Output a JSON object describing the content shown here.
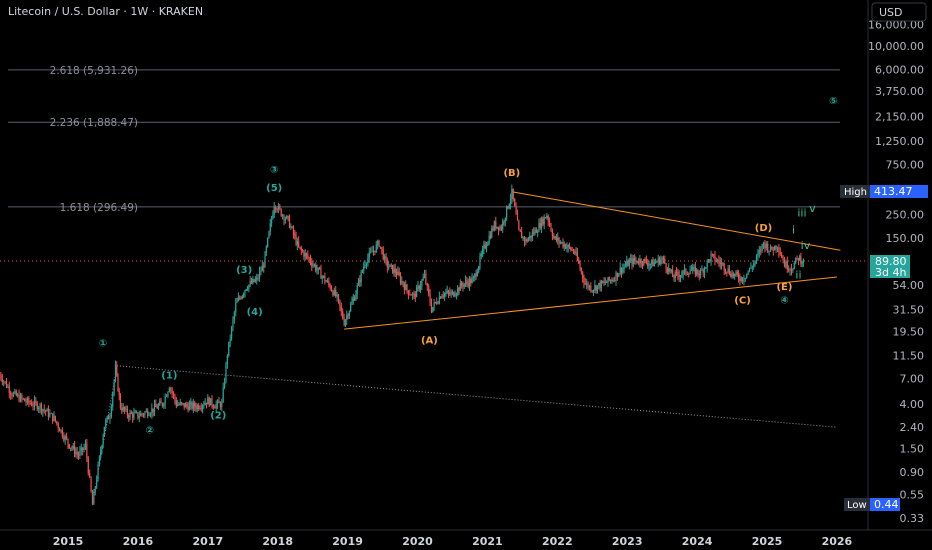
{
  "header": {
    "title": "Litecoin / U.S. Dollar · 1W · KRAKEN"
  },
  "currency_button": {
    "label": "USD"
  },
  "colors": {
    "background": "#000000",
    "up_candle": "#26a69a",
    "down_candle": "#ef5350",
    "wave_green": "#26a69a",
    "wave_orange": "#f7a23b",
    "trendline": "#f7931a",
    "fib_line": "#5b6170",
    "price_tag": "#26a69a",
    "high_tag": "#1e53e5",
    "low_tag": "#1e53e5"
  },
  "chart_data": {
    "type": "candlestick",
    "symbol": "Litecoin / U.S. Dollar",
    "interval": "1W",
    "exchange": "KRAKEN",
    "y_scale": "log",
    "x_tick_labels": [
      "2015",
      "2016",
      "2017",
      "2018",
      "2019",
      "2020",
      "2021",
      "2022",
      "2023",
      "2024",
      "2025",
      "2026"
    ],
    "y_tick_labels": [
      "16,000.00",
      "10,000.00",
      "6,000.00",
      "3,750.00",
      "2,150.00",
      "1,250.00",
      "750.00",
      "250.00",
      "150.00",
      "54.00",
      "31.50",
      "19.50",
      "11.50",
      "7.00",
      "4.00",
      "2.40",
      "1.50",
      "0.90",
      "0.55",
      "0.33"
    ],
    "y_ticks": [
      16000,
      10000,
      6000,
      3750,
      2150,
      1250,
      750,
      250,
      150,
      54,
      31.5,
      19.5,
      11.5,
      7,
      4,
      2.4,
      1.5,
      0.9,
      0.55,
      0.33
    ],
    "current_price": {
      "value": "89.80",
      "countdown": "3d 4h"
    },
    "high": {
      "label": "High",
      "value": "413.47"
    },
    "low": {
      "label": "Low",
      "value": "0.44"
    },
    "fib_levels": [
      {
        "label": "2.618 (5,931.26)",
        "value": 5931.26
      },
      {
        "label": "2.236 (1,888.47)",
        "value": 1888.47
      },
      {
        "label": "1.618 (296.49)",
        "value": 296.49
      }
    ],
    "price_path": [
      [
        2014.0,
        8
      ],
      [
        2014.2,
        5
      ],
      [
        2014.4,
        4.2
      ],
      [
        2014.6,
        3.8
      ],
      [
        2014.8,
        2.9
      ],
      [
        2015.0,
        1.7
      ],
      [
        2015.15,
        1.3
      ],
      [
        2015.25,
        1.6
      ],
      [
        2015.35,
        0.44
      ],
      [
        2015.45,
        1.2
      ],
      [
        2015.52,
        2.5
      ],
      [
        2015.6,
        3.2
      ],
      [
        2015.68,
        8.6
      ],
      [
        2015.75,
        3.8
      ],
      [
        2015.85,
        3.2
      ],
      [
        2016.0,
        3.1
      ],
      [
        2016.2,
        3.5
      ],
      [
        2016.35,
        4.0
      ],
      [
        2016.45,
        6.0
      ],
      [
        2016.55,
        4.0
      ],
      [
        2016.7,
        3.8
      ],
      [
        2016.85,
        3.8
      ],
      [
        2017.0,
        4.3
      ],
      [
        2017.1,
        3.9
      ],
      [
        2017.2,
        4.0
      ],
      [
        2017.28,
        12
      ],
      [
        2017.4,
        35
      ],
      [
        2017.55,
        52
      ],
      [
        2017.7,
        60
      ],
      [
        2017.8,
        85
      ],
      [
        2017.95,
        320
      ],
      [
        2018.05,
        260
      ],
      [
        2018.15,
        220
      ],
      [
        2018.3,
        120
      ],
      [
        2018.45,
        95
      ],
      [
        2018.6,
        70
      ],
      [
        2018.75,
        52
      ],
      [
        2018.85,
        40
      ],
      [
        2018.95,
        24
      ],
      [
        2019.1,
        42
      ],
      [
        2019.25,
        90
      ],
      [
        2019.45,
        135
      ],
      [
        2019.55,
        85
      ],
      [
        2019.7,
        70
      ],
      [
        2019.85,
        48
      ],
      [
        2019.95,
        42
      ],
      [
        2020.1,
        65
      ],
      [
        2020.2,
        32
      ],
      [
        2020.35,
        45
      ],
      [
        2020.5,
        44
      ],
      [
        2020.65,
        55
      ],
      [
        2020.8,
        60
      ],
      [
        2020.95,
        120
      ],
      [
        2021.1,
        200
      ],
      [
        2021.2,
        190
      ],
      [
        2021.35,
        405
      ],
      [
        2021.45,
        170
      ],
      [
        2021.55,
        140
      ],
      [
        2021.7,
        180
      ],
      [
        2021.85,
        250
      ],
      [
        2021.95,
        150
      ],
      [
        2022.1,
        130
      ],
      [
        2022.25,
        110
      ],
      [
        2022.4,
        55
      ],
      [
        2022.5,
        50
      ],
      [
        2022.65,
        55
      ],
      [
        2022.8,
        62
      ],
      [
        2022.9,
        75
      ],
      [
        2023.05,
        90
      ],
      [
        2023.2,
        92
      ],
      [
        2023.35,
        85
      ],
      [
        2023.5,
        95
      ],
      [
        2023.65,
        65
      ],
      [
        2023.8,
        70
      ],
      [
        2023.9,
        75
      ],
      [
        2024.05,
        70
      ],
      [
        2024.2,
        100
      ],
      [
        2024.35,
        85
      ],
      [
        2024.5,
        68
      ],
      [
        2024.65,
        62
      ],
      [
        2024.75,
        75
      ],
      [
        2024.85,
        95
      ],
      [
        2024.95,
        135
      ],
      [
        2025.05,
        115
      ],
      [
        2025.15,
        130
      ],
      [
        2025.25,
        85
      ],
      [
        2025.35,
        78
      ],
      [
        2025.45,
        98
      ],
      [
        2025.52,
        89.8
      ]
    ],
    "trendlines": [
      {
        "name": "triangle-upper",
        "from": [
          2021.35,
          413.47
        ],
        "to": [
          2026.05,
          115
        ]
      },
      {
        "name": "triangle-lower",
        "from": [
          2018.95,
          20.5
        ],
        "to": [
          2026.0,
          64
        ]
      },
      {
        "name": "dotted-channel",
        "from": [
          2015.7,
          9.2
        ],
        "to": [
          2026.0,
          2.4
        ]
      },
      {
        "name": "wave-1-leg",
        "from": [
          2015.35,
          0.44
        ],
        "to": [
          2015.7,
          9.2
        ]
      }
    ],
    "wave_labels": [
      {
        "text": "①",
        "style": "green",
        "x": 2015.5,
        "y": 14
      },
      {
        "text": "②",
        "style": "green",
        "x": 2016.17,
        "y": 2.1
      },
      {
        "text": "(1)",
        "style": "green",
        "x": 2016.45,
        "y": 7.0
      },
      {
        "text": "(2)",
        "style": "green",
        "x": 2017.15,
        "y": 2.9
      },
      {
        "text": "(3)",
        "style": "green",
        "x": 2017.52,
        "y": 70
      },
      {
        "text": "(4)",
        "style": "green",
        "x": 2017.67,
        "y": 28
      },
      {
        "text": "③",
        "style": "green",
        "x": 2017.95,
        "y": 620
      },
      {
        "text": "(5)",
        "style": "green",
        "x": 2017.95,
        "y": 420
      },
      {
        "text": "(A)",
        "style": "orange",
        "x": 2020.17,
        "y": 15
      },
      {
        "text": "(B)",
        "style": "orange",
        "x": 2021.35,
        "y": 580
      },
      {
        "text": "(C)",
        "style": "orange",
        "x": 2024.65,
        "y": 36
      },
      {
        "text": "(D)",
        "style": "orange",
        "x": 2024.95,
        "y": 175
      },
      {
        "text": "(E)",
        "style": "orange",
        "x": 2025.25,
        "y": 48
      },
      {
        "text": "④",
        "style": "green",
        "x": 2025.25,
        "y": 36
      },
      {
        "text": "⑤",
        "style": "green",
        "x": 2025.95,
        "y": 2800
      },
      {
        "text": "i",
        "style": "light",
        "x": 2025.38,
        "y": 165
      },
      {
        "text": "ii",
        "style": "light",
        "x": 2025.45,
        "y": 62
      },
      {
        "text": "iii",
        "style": "light",
        "x": 2025.5,
        "y": 240
      },
      {
        "text": "iv",
        "style": "light",
        "x": 2025.55,
        "y": 118
      },
      {
        "text": "v",
        "style": "light",
        "x": 2025.65,
        "y": 265
      }
    ]
  }
}
